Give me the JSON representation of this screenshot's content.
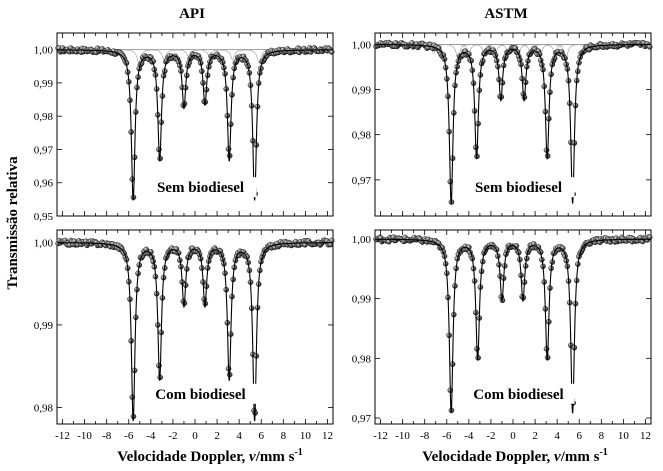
{
  "figure": {
    "ylabel": "Transmissão relativa",
    "xlabel_prefix": "Velocidade Doppler, ",
    "xlabel_var": "v",
    "xlabel_unit": "/mm s",
    "xlabel_exp": "-1",
    "column_titles": [
      "API",
      "ASTM"
    ]
  },
  "chart_data": [
    {
      "id": "api-sem",
      "type": "scatter",
      "title": "API",
      "annotation": "Sem biodiesel",
      "xlim": [
        -12.5,
        12.5
      ],
      "ylim": [
        0.95,
        1.005
      ],
      "xticks": [
        -12,
        -10,
        -8,
        -6,
        -4,
        -2,
        0,
        2,
        4,
        6,
        8,
        10,
        12
      ],
      "yticks": [
        0.95,
        0.96,
        0.97,
        0.98,
        0.99,
        1.0
      ],
      "ytick_labels": [
        "0,95",
        "0,96",
        "0,97",
        "0,98",
        "0,99",
        "1,00"
      ],
      "baseline": 1.0,
      "peaks": [
        {
          "x": -5.6,
          "depth": 0.045
        },
        {
          "x": -3.2,
          "depth": 0.033
        },
        {
          "x": -1.0,
          "depth": 0.017
        },
        {
          "x": 0.9,
          "depth": 0.016
        },
        {
          "x": 3.1,
          "depth": 0.033
        },
        {
          "x": 5.4,
          "depth": 0.045
        }
      ],
      "components": [
        {
          "x": -5.1,
          "depth": 0.004
        },
        {
          "x": -2.8,
          "depth": 0.003
        },
        {
          "x": -0.6,
          "depth": 0.002
        },
        {
          "x": 1.3,
          "depth": 0.002
        },
        {
          "x": 3.4,
          "depth": 0.003
        },
        {
          "x": 5.8,
          "depth": 0.004
        }
      ]
    },
    {
      "id": "astm-sem",
      "type": "scatter",
      "title": "ASTM",
      "annotation": "Sem biodiesel",
      "xlim": [
        -12.5,
        12.5
      ],
      "ylim": [
        0.962,
        1.0025
      ],
      "xticks": [
        -12,
        -10,
        -8,
        -6,
        -4,
        -2,
        0,
        2,
        4,
        6,
        8,
        10,
        12
      ],
      "yticks": [
        0.97,
        0.98,
        0.99,
        1.0
      ],
      "ytick_labels": [
        "0,97",
        "0,98",
        "0,99",
        "1,00"
      ],
      "baseline": 1.0,
      "peaks": [
        {
          "x": -5.6,
          "depth": 0.035
        },
        {
          "x": -3.3,
          "depth": 0.025
        },
        {
          "x": -1.1,
          "depth": 0.012
        },
        {
          "x": 1.0,
          "depth": 0.012
        },
        {
          "x": 3.1,
          "depth": 0.025
        },
        {
          "x": 5.4,
          "depth": 0.035
        }
      ],
      "components": [
        {
          "x": -7.2,
          "depth": 0.002
        },
        {
          "x": -5.0,
          "depth": 0.003
        },
        {
          "x": -4.0,
          "depth": 0.002
        },
        {
          "x": -2.6,
          "depth": 0.002
        },
        {
          "x": -1.6,
          "depth": 0.002
        },
        {
          "x": -0.4,
          "depth": 0.002
        },
        {
          "x": 0.5,
          "depth": 0.002
        },
        {
          "x": 1.6,
          "depth": 0.002
        },
        {
          "x": 2.5,
          "depth": 0.002
        },
        {
          "x": 3.8,
          "depth": 0.002
        },
        {
          "x": 4.8,
          "depth": 0.003
        },
        {
          "x": 6.9,
          "depth": 0.002
        }
      ]
    },
    {
      "id": "api-com",
      "type": "scatter",
      "annotation": "Com biodiesel",
      "xlim": [
        -12.5,
        12.5
      ],
      "ylim": [
        0.978,
        1.0015
      ],
      "xticks": [
        -12,
        -10,
        -8,
        -6,
        -4,
        -2,
        0,
        2,
        4,
        6,
        8,
        10,
        12
      ],
      "yticks": [
        0.98,
        0.99,
        1.0
      ],
      "ytick_labels": [
        "0,98",
        "0,99",
        "1,00"
      ],
      "baseline": 1.0,
      "peaks": [
        {
          "x": -5.6,
          "depth": 0.0215
        },
        {
          "x": -3.2,
          "depth": 0.0165
        },
        {
          "x": -1.0,
          "depth": 0.0075
        },
        {
          "x": 0.9,
          "depth": 0.0075
        },
        {
          "x": 3.1,
          "depth": 0.0165
        },
        {
          "x": 5.4,
          "depth": 0.0215
        }
      ],
      "components": []
    },
    {
      "id": "astm-com",
      "type": "scatter",
      "annotation": "Com biodiesel",
      "xlim": [
        -12.5,
        12.5
      ],
      "ylim": [
        0.969,
        1.0015
      ],
      "xticks": [
        -12,
        -10,
        -8,
        -6,
        -4,
        -2,
        0,
        2,
        4,
        6,
        8,
        10,
        12
      ],
      "yticks": [
        0.97,
        0.98,
        0.99,
        1.0
      ],
      "ytick_labels": [
        "0,97",
        "0,98",
        "0,99",
        "1,00"
      ],
      "baseline": 1.0,
      "peaks": [
        {
          "x": -5.6,
          "depth": 0.029
        },
        {
          "x": -3.2,
          "depth": 0.02
        },
        {
          "x": -1.0,
          "depth": 0.01
        },
        {
          "x": 0.9,
          "depth": 0.01
        },
        {
          "x": 3.1,
          "depth": 0.02
        },
        {
          "x": 5.4,
          "depth": 0.029
        }
      ],
      "components": []
    }
  ]
}
